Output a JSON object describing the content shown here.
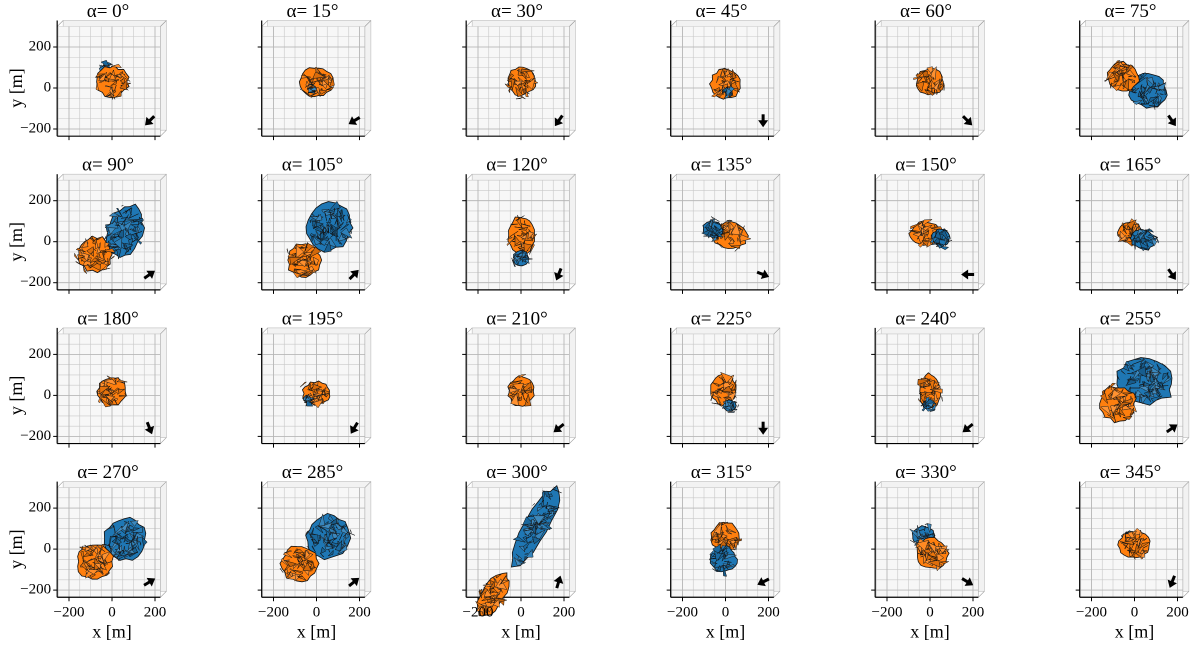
{
  "figure": {
    "panels": [
      {
        "title": "α= 0°"
      },
      {
        "title": "α= 15°"
      },
      {
        "title": "α= 30°"
      },
      {
        "title": "α= 45°"
      },
      {
        "title": "α= 60°"
      },
      {
        "title": "α= 75°"
      },
      {
        "title": "α= 90°"
      },
      {
        "title": "α= 105°"
      },
      {
        "title": "α= 120°"
      },
      {
        "title": "α= 135°"
      },
      {
        "title": "α= 150°"
      },
      {
        "title": "α= 165°"
      },
      {
        "title": "α= 180°"
      },
      {
        "title": "α= 195°"
      },
      {
        "title": "α= 210°"
      },
      {
        "title": "α= 225°"
      },
      {
        "title": "α= 240°"
      },
      {
        "title": "α= 255°"
      },
      {
        "title": "α= 270°"
      },
      {
        "title": "α= 285°"
      },
      {
        "title": "α= 300°"
      },
      {
        "title": "α= 315°"
      },
      {
        "title": "α= 330°"
      },
      {
        "title": "α= 345°"
      }
    ],
    "x_label": "x [m]",
    "y_label": "y [m]",
    "xticks": [
      {
        "value": -200,
        "label": "−200"
      },
      0,
      200
    ],
    "yticks": [
      {
        "value": -200,
        "label": "−200"
      },
      0,
      200
    ]
  }
}
